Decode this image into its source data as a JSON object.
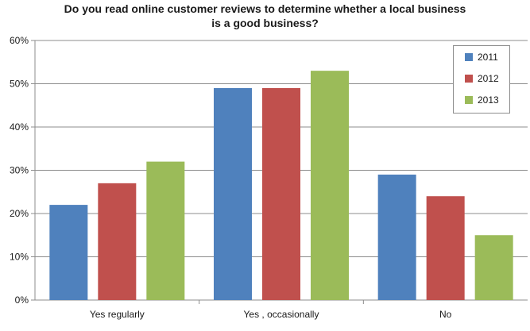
{
  "chart_data": {
    "type": "bar",
    "title_lines": [
      "Do you read online customer reviews to determine whether a local business",
      "is a good business?"
    ],
    "categories": [
      "Yes regularly",
      "Yes , occasionally",
      "No"
    ],
    "series": [
      {
        "name": "2011",
        "color": "#4f81bd",
        "values": [
          22,
          49,
          29
        ]
      },
      {
        "name": "2012",
        "color": "#c0504d",
        "values": [
          27,
          49,
          24
        ]
      },
      {
        "name": "2013",
        "color": "#9bbb59",
        "values": [
          32,
          53,
          15
        ]
      }
    ],
    "ylim": [
      0,
      60
    ],
    "yticks": [
      "0%",
      "10%",
      "20%",
      "30%",
      "40%",
      "50%",
      "60%"
    ],
    "grid": true,
    "legend_position": "top-right"
  }
}
